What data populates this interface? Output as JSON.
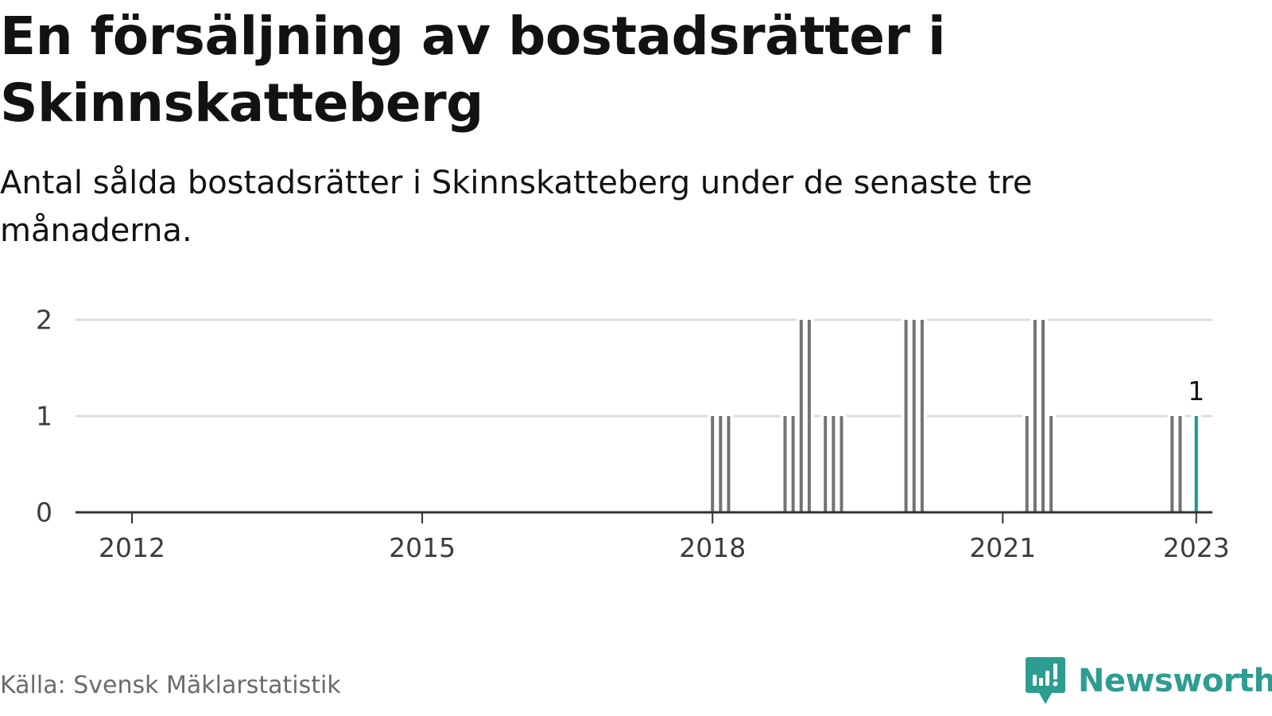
{
  "title": "En försäljning av bostadsrätter i Skinnskatteberg",
  "subtitle": "Antal sålda bostadsrätter i Skinnskatteberg under de senaste tre månaderna.",
  "source": "Källa: Svensk Mäklarstatistik",
  "brand": {
    "name": "Newsworthy",
    "icon": "newsworthy-logo-icon",
    "color": "#2d9c91"
  },
  "colors": {
    "bar": "#737373",
    "highlight": "#159b90",
    "grid": "#dddddd",
    "axis": "#333333"
  },
  "chart_data": {
    "type": "bar",
    "title": "En försäljning av bostadsrätter i Skinnskatteberg",
    "subtitle": "Antal sålda bostadsrätter i Skinnskatteberg under de senaste tre månaderna.",
    "xlabel": "",
    "ylabel": "",
    "x_type": "date",
    "x_range": [
      "2011-06",
      "2023-03"
    ],
    "x_ticks": [
      {
        "date": "2012-01",
        "label": "2012"
      },
      {
        "date": "2015-01",
        "label": "2015"
      },
      {
        "date": "2018-01",
        "label": "2018"
      },
      {
        "date": "2021-01",
        "label": "2021"
      },
      {
        "date": "2023-01",
        "label": "2023"
      }
    ],
    "ylim": [
      0,
      2
    ],
    "y_ticks": [
      0,
      1,
      2
    ],
    "grid": true,
    "legend": "none",
    "series": [
      {
        "points": [
          {
            "date": "2018-01",
            "value": 1
          },
          {
            "date": "2018-02",
            "value": 1
          },
          {
            "date": "2018-03",
            "value": 1
          },
          {
            "date": "2018-10",
            "value": 1
          },
          {
            "date": "2018-11",
            "value": 1
          },
          {
            "date": "2018-12",
            "value": 2
          },
          {
            "date": "2019-01",
            "value": 2
          },
          {
            "date": "2019-03",
            "value": 1
          },
          {
            "date": "2019-04",
            "value": 1
          },
          {
            "date": "2019-05",
            "value": 1
          },
          {
            "date": "2020-01",
            "value": 2
          },
          {
            "date": "2020-02",
            "value": 2
          },
          {
            "date": "2020-03",
            "value": 2
          },
          {
            "date": "2021-04",
            "value": 1
          },
          {
            "date": "2021-05",
            "value": 2
          },
          {
            "date": "2021-06",
            "value": 2
          },
          {
            "date": "2021-07",
            "value": 1
          },
          {
            "date": "2022-10",
            "value": 1
          },
          {
            "date": "2022-11",
            "value": 1
          },
          {
            "date": "2023-01",
            "value": 1,
            "highlight": true,
            "label": "1"
          }
        ]
      }
    ]
  }
}
